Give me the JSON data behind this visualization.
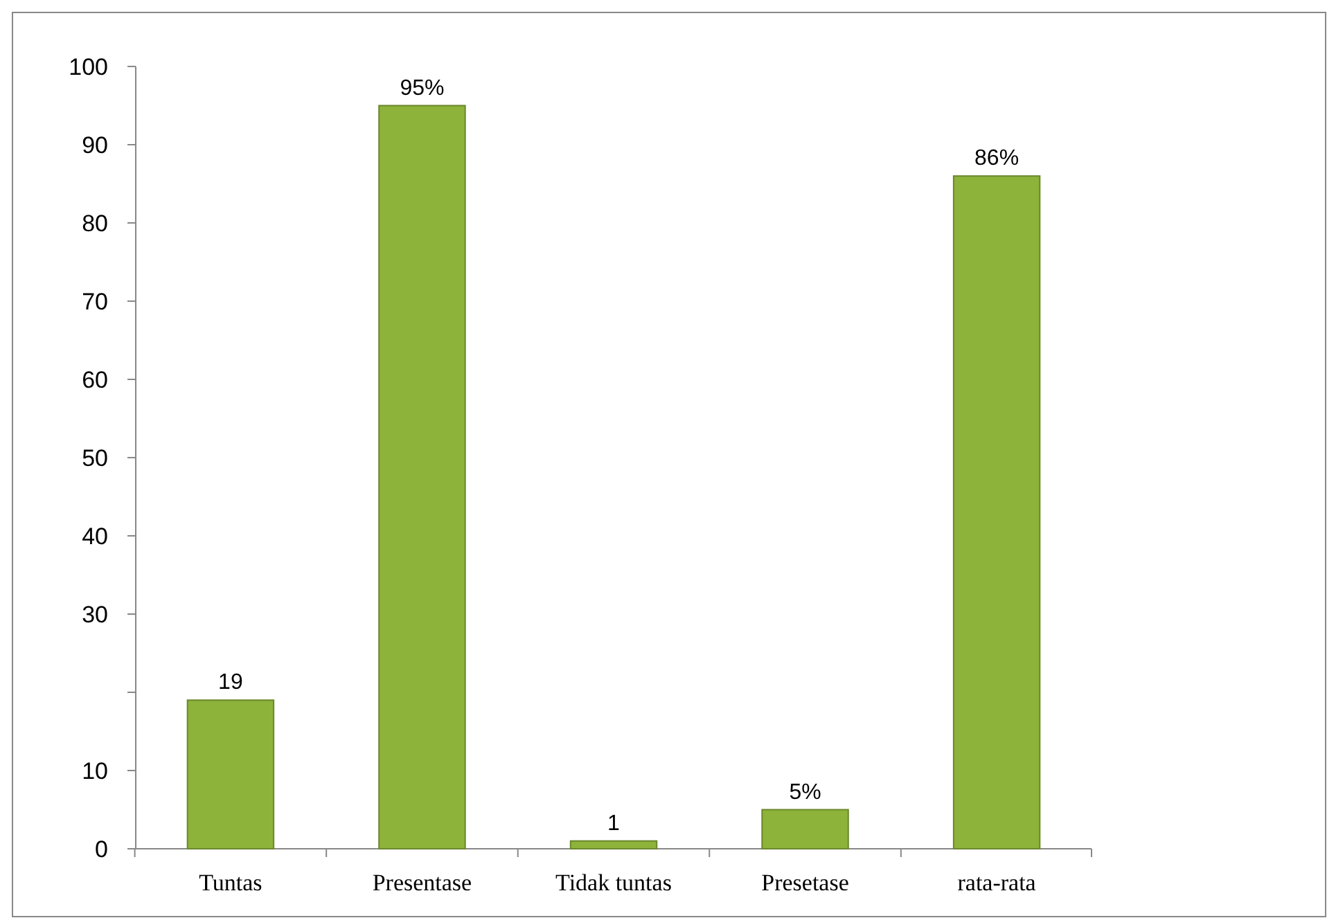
{
  "chart_data": {
    "type": "bar",
    "categories": [
      "Tuntas",
      "Presentase",
      "Tidak tuntas",
      "Presetase",
      "rata-rata"
    ],
    "values": [
      19,
      95,
      1,
      5,
      86
    ],
    "value_labels": [
      "19",
      "95%",
      "1",
      "5%",
      "86%"
    ],
    "color": "#8db33a",
    "ylim": [
      0,
      100
    ],
    "yticks": [
      0,
      10,
      {
        "value": 20,
        "label": null
      },
      30,
      40,
      50,
      60,
      70,
      80,
      90,
      100
    ],
    "grid": false
  }
}
